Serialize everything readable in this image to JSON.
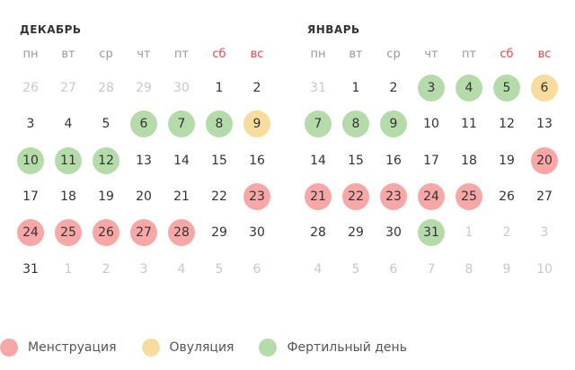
{
  "weekdays": [
    "пн",
    "вт",
    "ср",
    "чт",
    "пт",
    "сб",
    "вс"
  ],
  "colors": {
    "menstruation": "#f6a7a6",
    "ovulation": "#f7dc9d",
    "fertile": "#b5dbaa",
    "weekend": "#e8474e"
  },
  "months": [
    {
      "title": "ДЕКАБРЬ",
      "days": [
        [
          "26",
          "other"
        ],
        [
          "27",
          "other"
        ],
        [
          "28",
          "other"
        ],
        [
          "29",
          "other"
        ],
        [
          "30",
          "other"
        ],
        [
          "1",
          ""
        ],
        [
          "2",
          ""
        ],
        [
          "3",
          ""
        ],
        [
          "4",
          ""
        ],
        [
          "5",
          ""
        ],
        [
          "6",
          "f"
        ],
        [
          "7",
          "f"
        ],
        [
          "8",
          "f"
        ],
        [
          "9",
          "o"
        ],
        [
          "10",
          "f"
        ],
        [
          "11",
          "f"
        ],
        [
          "12",
          "f"
        ],
        [
          "13",
          ""
        ],
        [
          "14",
          ""
        ],
        [
          "15",
          ""
        ],
        [
          "16",
          ""
        ],
        [
          "17",
          ""
        ],
        [
          "18",
          ""
        ],
        [
          "19",
          ""
        ],
        [
          "20",
          ""
        ],
        [
          "21",
          ""
        ],
        [
          "22",
          ""
        ],
        [
          "23",
          "m"
        ],
        [
          "24",
          "m"
        ],
        [
          "25",
          "m"
        ],
        [
          "26",
          "m"
        ],
        [
          "27",
          "m"
        ],
        [
          "28",
          "m"
        ],
        [
          "29",
          ""
        ],
        [
          "30",
          ""
        ],
        [
          "31",
          ""
        ],
        [
          "1",
          "other"
        ],
        [
          "2",
          "other"
        ],
        [
          "3",
          "other"
        ],
        [
          "4",
          "other"
        ],
        [
          "5",
          "other"
        ],
        [
          "6",
          "other"
        ]
      ]
    },
    {
      "title": "ЯНВАРЬ",
      "days": [
        [
          "31",
          "other"
        ],
        [
          "1",
          ""
        ],
        [
          "2",
          ""
        ],
        [
          "3",
          "f"
        ],
        [
          "4",
          "f"
        ],
        [
          "5",
          "f"
        ],
        [
          "6",
          "o"
        ],
        [
          "7",
          "f"
        ],
        [
          "8",
          "f"
        ],
        [
          "9",
          "f"
        ],
        [
          "10",
          ""
        ],
        [
          "11",
          ""
        ],
        [
          "12",
          ""
        ],
        [
          "13",
          ""
        ],
        [
          "14",
          ""
        ],
        [
          "15",
          ""
        ],
        [
          "16",
          ""
        ],
        [
          "17",
          ""
        ],
        [
          "18",
          ""
        ],
        [
          "19",
          ""
        ],
        [
          "20",
          "m"
        ],
        [
          "21",
          "m"
        ],
        [
          "22",
          "m"
        ],
        [
          "23",
          "m"
        ],
        [
          "24",
          "m"
        ],
        [
          "25",
          "m"
        ],
        [
          "26",
          ""
        ],
        [
          "27",
          ""
        ],
        [
          "28",
          ""
        ],
        [
          "29",
          ""
        ],
        [
          "30",
          ""
        ],
        [
          "31",
          "f"
        ],
        [
          "1",
          "other"
        ],
        [
          "2",
          "other"
        ],
        [
          "3",
          "other"
        ],
        [
          "4",
          "other"
        ],
        [
          "5",
          "other"
        ],
        [
          "6",
          "other"
        ],
        [
          "7",
          "other"
        ],
        [
          "8",
          "other"
        ],
        [
          "9",
          "other"
        ],
        [
          "10",
          "other"
        ]
      ]
    }
  ],
  "legend": [
    {
      "label": "Менструация",
      "key": "menstruation",
      "color": "#f6a7a6"
    },
    {
      "label": "Овуляция",
      "key": "ovulation",
      "color": "#f7dc9d"
    },
    {
      "label": "Фертильный день",
      "key": "fertile",
      "color": "#b5dbaa"
    }
  ]
}
